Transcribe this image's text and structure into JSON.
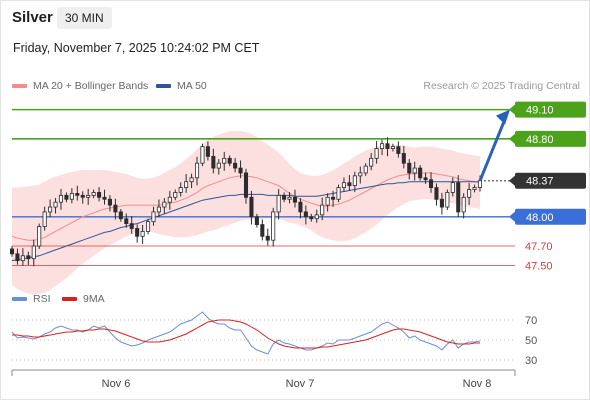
{
  "header": {
    "symbol": "Silver",
    "timeframe": "30 MIN",
    "datetime": "Friday, November 7, 2025 10:24:02 PM CET"
  },
  "legend": {
    "ma20": "MA 20 + Bollinger Bands",
    "ma50": "MA 50",
    "rsi": "RSI",
    "rsi_ma": "9MA",
    "credit": "Research © 2025 Trading Central"
  },
  "colors": {
    "ma20": "#f28c8c",
    "ma50": "#2f5597",
    "bollinger_fill": "#fbd9d9",
    "resistance": "#4ca21b",
    "pivot": "#3a6fd8",
    "support": "#d93b3b",
    "current": "#333333",
    "candle": "#2c2c2c",
    "rsi": "#6b8fd6",
    "rsi_ma": "#d92020",
    "arrow": "#2a62b8"
  },
  "chart_data": [
    {
      "type": "candlestick",
      "ylim": [
        47.3,
        49.25
      ],
      "x_ticks": [
        "Nov 6",
        "Nov 7",
        "Nov 8"
      ],
      "levels": [
        {
          "label": "49.10",
          "value": 49.1,
          "kind": "resistance"
        },
        {
          "label": "48.80",
          "value": 48.8,
          "kind": "resistance"
        },
        {
          "label": "48.37",
          "value": 48.37,
          "kind": "current"
        },
        {
          "label": "48.00",
          "value": 48.0,
          "kind": "pivot"
        },
        {
          "label": "47.70",
          "value": 47.7,
          "kind": "support"
        },
        {
          "label": "47.50",
          "value": 47.5,
          "kind": "support"
        }
      ],
      "close": [
        47.62,
        47.55,
        47.6,
        47.57,
        47.7,
        47.9,
        48.05,
        48.1,
        48.15,
        48.22,
        48.18,
        48.24,
        48.22,
        48.2,
        48.22,
        48.25,
        48.2,
        48.18,
        48.12,
        48.05,
        47.98,
        47.93,
        47.88,
        47.8,
        47.85,
        47.95,
        48.05,
        48.1,
        48.15,
        48.2,
        48.25,
        48.3,
        48.36,
        48.4,
        48.55,
        48.72,
        48.62,
        48.5,
        48.55,
        48.6,
        48.55,
        48.5,
        48.45,
        48.2,
        48.0,
        47.92,
        47.8,
        47.76,
        48.05,
        48.22,
        48.18,
        48.2,
        48.15,
        48.05,
        48.0,
        47.98,
        48.02,
        48.12,
        48.2,
        48.18,
        48.3,
        48.35,
        48.32,
        48.42,
        48.45,
        48.52,
        48.6,
        48.7,
        48.75,
        48.7,
        48.72,
        48.65,
        48.55,
        48.45,
        48.5,
        48.4,
        48.38,
        48.3,
        48.18,
        48.1,
        48.25,
        48.35,
        48.05,
        48.2,
        48.28,
        48.3,
        48.37
      ],
      "ma20": [
        47.8,
        47.78,
        47.77,
        47.76,
        47.76,
        47.77,
        47.79,
        47.82,
        47.85,
        47.88,
        47.91,
        47.94,
        47.97,
        48.0,
        48.02,
        48.04,
        48.06,
        48.08,
        48.09,
        48.1,
        48.11,
        48.12,
        48.12,
        48.12,
        48.12,
        48.12,
        48.12,
        48.12,
        48.13,
        48.14,
        48.15,
        48.17,
        48.19,
        48.22,
        48.25,
        48.29,
        48.32,
        48.34,
        48.36,
        48.38,
        48.4,
        48.41,
        48.42,
        48.42,
        48.41,
        48.4,
        48.38,
        48.36,
        48.34,
        48.32,
        48.28,
        48.24,
        48.21,
        48.18,
        48.16,
        48.14,
        48.12,
        48.11,
        48.11,
        48.12,
        48.13,
        48.15,
        48.17,
        48.2,
        48.23,
        48.26,
        48.29,
        48.32,
        48.35,
        48.38,
        48.4,
        48.42,
        48.43,
        48.44,
        48.44,
        48.45,
        48.45,
        48.45,
        48.44,
        48.43,
        48.42,
        48.41,
        48.39,
        48.38,
        48.37,
        48.36,
        48.35
      ],
      "ma50": [
        47.55,
        47.56,
        47.57,
        47.58,
        47.59,
        47.6,
        47.62,
        47.64,
        47.66,
        47.68,
        47.7,
        47.72,
        47.74,
        47.76,
        47.78,
        47.8,
        47.82,
        47.84,
        47.85,
        47.87,
        47.89,
        47.9,
        47.92,
        47.93,
        47.95,
        47.97,
        47.99,
        48.01,
        48.03,
        48.05,
        48.07,
        48.09,
        48.11,
        48.13,
        48.15,
        48.17,
        48.18,
        48.19,
        48.2,
        48.21,
        48.22,
        48.22,
        48.23,
        48.23,
        48.23,
        48.23,
        48.23,
        48.22,
        48.22,
        48.22,
        48.22,
        48.22,
        48.21,
        48.21,
        48.21,
        48.21,
        48.21,
        48.22,
        48.23,
        48.24,
        48.25,
        48.26,
        48.27,
        48.28,
        48.29,
        48.3,
        48.31,
        48.32,
        48.33,
        48.34,
        48.34,
        48.35,
        48.35,
        48.36,
        48.36,
        48.36,
        48.36,
        48.36,
        48.36,
        48.36,
        48.36,
        48.36,
        48.36,
        48.36,
        48.36,
        48.36,
        48.36
      ],
      "band_width": [
        0.5,
        0.52,
        0.54,
        0.55,
        0.56,
        0.56,
        0.57,
        0.57,
        0.56,
        0.55,
        0.54,
        0.52,
        0.5,
        0.48,
        0.46,
        0.44,
        0.42,
        0.4,
        0.38,
        0.36,
        0.34,
        0.32,
        0.3,
        0.28,
        0.27,
        0.27,
        0.28,
        0.3,
        0.32,
        0.34,
        0.36,
        0.38,
        0.4,
        0.42,
        0.44,
        0.46,
        0.47,
        0.48,
        0.48,
        0.48,
        0.48,
        0.47,
        0.46,
        0.45,
        0.44,
        0.42,
        0.4,
        0.38,
        0.36,
        0.34,
        0.32,
        0.3,
        0.28,
        0.27,
        0.27,
        0.28,
        0.3,
        0.32,
        0.34,
        0.36,
        0.38,
        0.4,
        0.41,
        0.42,
        0.42,
        0.42,
        0.41,
        0.4,
        0.38,
        0.36,
        0.34,
        0.32,
        0.3,
        0.28,
        0.27,
        0.27,
        0.27,
        0.27,
        0.27,
        0.27,
        0.27,
        0.27,
        0.27,
        0.27,
        0.27,
        0.27,
        0.27
      ]
    },
    {
      "type": "line",
      "ylim": [
        25,
        80
      ],
      "y_ticks": [
        70,
        50,
        30
      ],
      "series": [
        {
          "name": "RSI",
          "values": [
            58,
            52,
            53,
            52,
            51,
            53,
            56,
            58,
            62,
            64,
            62,
            60,
            60,
            58,
            60,
            64,
            62,
            64,
            58,
            52,
            48,
            46,
            44,
            45,
            47,
            50,
            52,
            54,
            56,
            58,
            62,
            66,
            68,
            70,
            74,
            78,
            72,
            68,
            66,
            66,
            62,
            60,
            60,
            52,
            44,
            40,
            38,
            36,
            46,
            50,
            47,
            46,
            44,
            42,
            40,
            40,
            42,
            44,
            47,
            46,
            50,
            50,
            50,
            52,
            54,
            56,
            58,
            62,
            66,
            68,
            65,
            62,
            58,
            52,
            54,
            50,
            48,
            46,
            44,
            40,
            46,
            50,
            42,
            46,
            48,
            48,
            49
          ]
        },
        {
          "name": "9MA",
          "values": [
            55,
            55,
            54,
            54,
            53,
            53,
            54,
            55,
            56,
            57,
            58,
            58,
            59,
            59,
            60,
            60,
            61,
            61,
            60,
            59,
            57,
            55,
            53,
            51,
            49,
            48,
            48,
            48,
            49,
            50,
            52,
            54,
            56,
            59,
            62,
            65,
            68,
            69,
            70,
            70,
            70,
            69,
            68,
            66,
            63,
            60,
            56,
            52,
            49,
            46,
            44,
            43,
            42,
            42,
            42,
            42,
            42,
            43,
            43,
            44,
            45,
            46,
            47,
            48,
            49,
            50,
            52,
            54,
            56,
            58,
            60,
            61,
            61,
            60,
            59,
            58,
            56,
            54,
            52,
            50,
            48,
            47,
            46,
            46,
            46,
            47,
            47
          ]
        }
      ]
    }
  ]
}
